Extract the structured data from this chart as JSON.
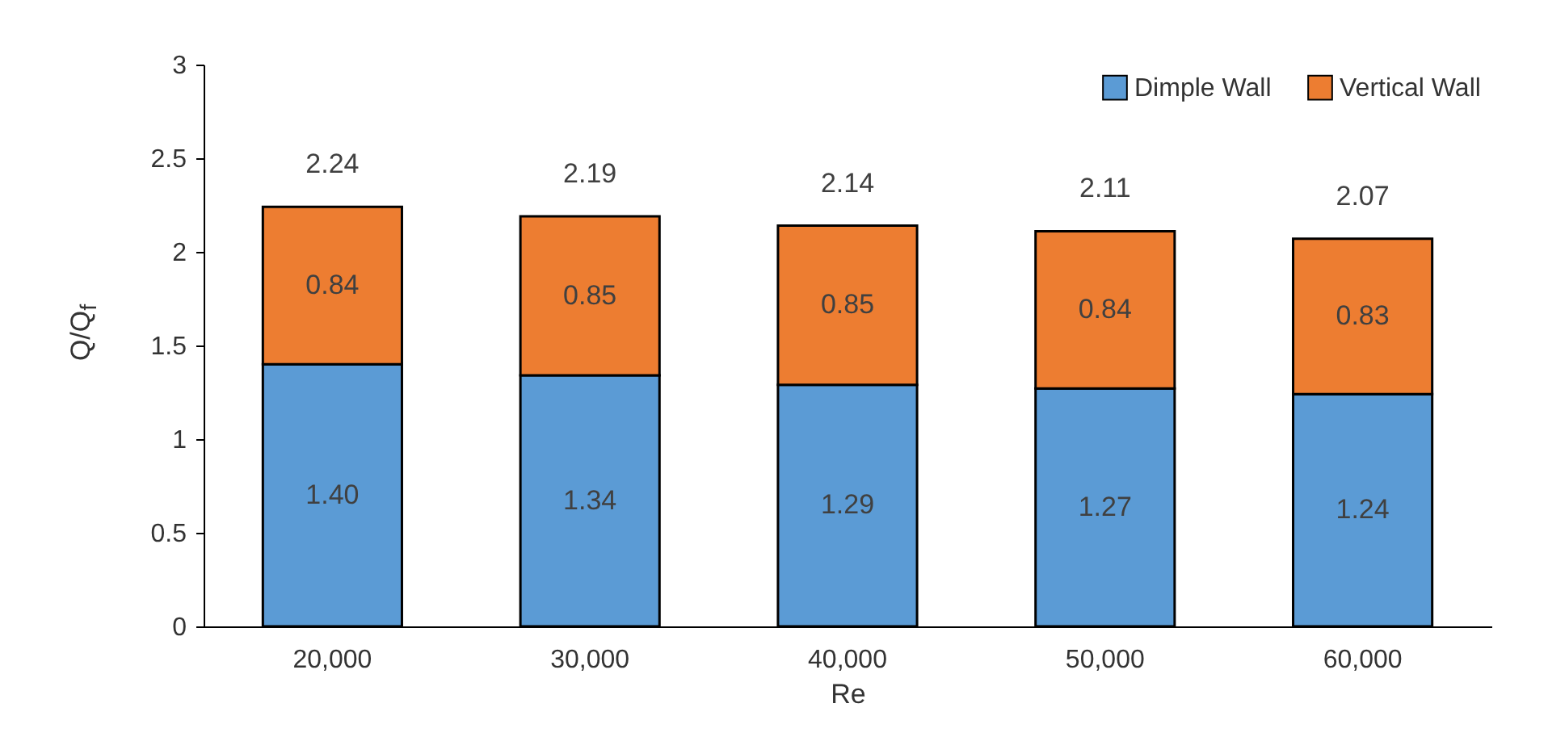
{
  "chart_data": {
    "type": "bar",
    "stacked": true,
    "xlabel": "Re",
    "ylabel": "Q/Q$_{f}$",
    "categories": [
      "20,000",
      "30,000",
      "40,000",
      "50,000",
      "60,000"
    ],
    "series": [
      {
        "name": "Dimple Wall",
        "color": "#5b9bd5",
        "values": [
          1.4,
          1.34,
          1.29,
          1.27,
          1.24
        ],
        "value_labels": [
          "1.40",
          "1.34",
          "1.29",
          "1.27",
          "1.24"
        ]
      },
      {
        "name": "Vertical Wall",
        "color": "#ed7d31",
        "values": [
          0.84,
          0.85,
          0.85,
          0.84,
          0.83
        ],
        "value_labels": [
          "0.84",
          "0.85",
          "0.85",
          "0.84",
          "0.83"
        ]
      }
    ],
    "totals": [
      "2.24",
      "2.19",
      "2.14",
      "2.11",
      "2.07"
    ],
    "ylim": [
      0,
      3
    ],
    "yticks": [
      0,
      0.5,
      1,
      1.5,
      2,
      2.5,
      3
    ],
    "grid": false,
    "legend": "top right"
  }
}
